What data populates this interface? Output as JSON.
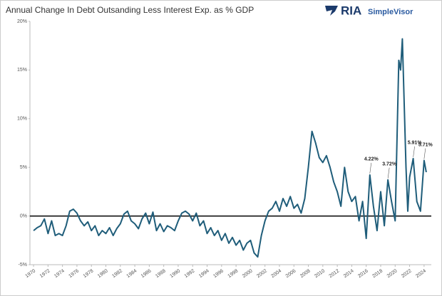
{
  "branding": {
    "name": "RIA",
    "product": "SimpleVisor"
  },
  "chart_data": {
    "type": "line",
    "title": "Annual Change In Debt Outsanding Less Interest Exp. as % GDP",
    "x": [
      1970,
      1970.5,
      1971,
      1971.5,
      1972,
      1972.5,
      1973,
      1973.5,
      1974,
      1974.5,
      1975,
      1975.5,
      1976,
      1976.5,
      1977,
      1977.5,
      1978,
      1978.5,
      1979,
      1979.5,
      1980,
      1980.5,
      1981,
      1981.5,
      1982,
      1982.5,
      1983,
      1983.5,
      1984,
      1984.5,
      1985,
      1985.5,
      1986,
      1986.5,
      1987,
      1987.5,
      1988,
      1988.5,
      1989,
      1989.5,
      1990,
      1990.5,
      1991,
      1991.5,
      1992,
      1992.5,
      1993,
      1993.5,
      1994,
      1994.5,
      1995,
      1995.5,
      1996,
      1996.5,
      1997,
      1997.5,
      1998,
      1998.5,
      1999,
      1999.5,
      2000,
      2000.5,
      2001,
      2001.5,
      2002,
      2002.5,
      2003,
      2003.5,
      2004,
      2004.5,
      2005,
      2005.5,
      2006,
      2006.5,
      2007,
      2007.5,
      2008,
      2008.5,
      2009,
      2009.5,
      2010,
      2010.5,
      2011,
      2011.5,
      2012,
      2012.5,
      2013,
      2013.5,
      2014,
      2014.5,
      2015,
      2015.5,
      2016,
      2016.5,
      2017,
      2017.5,
      2018,
      2018.5,
      2019,
      2019.5,
      2020,
      2020.5,
      2020.75,
      2021,
      2021.5,
      2021.75,
      2022,
      2022.5,
      2023,
      2023.5,
      2024,
      2024.3
    ],
    "series": [
      {
        "color": "#1f5d7a",
        "values": [
          -1.5,
          -1.2,
          -1.0,
          -0.3,
          -1.8,
          -0.5,
          -2.0,
          -1.8,
          -2.0,
          -1.0,
          0.5,
          0.7,
          0.3,
          -0.5,
          -1.0,
          -0.6,
          -1.5,
          -1.0,
          -2.0,
          -1.5,
          -1.8,
          -1.2,
          -2.0,
          -1.3,
          -0.8,
          0.2,
          0.5,
          -0.5,
          -0.8,
          -1.3,
          -0.3,
          0.3,
          -0.8,
          0.4,
          -1.5,
          -0.8,
          -1.6,
          -1.0,
          -1.2,
          -1.5,
          -0.5,
          0.3,
          0.5,
          0.2,
          -0.5,
          0.3,
          -1.0,
          -0.5,
          -1.8,
          -1.2,
          -2.0,
          -1.5,
          -2.5,
          -1.8,
          -2.8,
          -2.2,
          -3.0,
          -2.5,
          -3.5,
          -2.8,
          -2.5,
          -3.8,
          -4.2,
          -2.0,
          -0.5,
          0.5,
          0.8,
          1.5,
          0.5,
          1.8,
          1.0,
          2.0,
          0.8,
          1.2,
          0.3,
          1.8,
          5.0,
          8.7,
          7.5,
          6.0,
          5.5,
          6.2,
          5.0,
          3.5,
          2.5,
          1.0,
          5.0,
          2.5,
          1.5,
          2.0,
          -0.5,
          1.5,
          -2.3,
          4.22,
          1.0,
          -1.5,
          2.5,
          -1.0,
          3.72,
          1.5,
          -0.5,
          16.0,
          15.0,
          18.2,
          5.0,
          0.5,
          4.0,
          5.91,
          1.5,
          0.5,
          5.71,
          4.5
        ],
        "value_labels": [
          null,
          null,
          null,
          null,
          null,
          null,
          null,
          null,
          null,
          null,
          null,
          null,
          null,
          null,
          null,
          null,
          null,
          null,
          null,
          null,
          null,
          null,
          null,
          null,
          null,
          null,
          null,
          null,
          null,
          null,
          null,
          null,
          null,
          null,
          null,
          null,
          null,
          null,
          null,
          null,
          null,
          null,
          null,
          null,
          null,
          null,
          null,
          null,
          null,
          null,
          null,
          null,
          null,
          null,
          null,
          null,
          null,
          null,
          null,
          null,
          null,
          null,
          null,
          null,
          null,
          null,
          null,
          null,
          null,
          null,
          null,
          null,
          null,
          null,
          null,
          null,
          null,
          null,
          null,
          null,
          null,
          null,
          null,
          null,
          null,
          null,
          null,
          null,
          null,
          null,
          null,
          null,
          null,
          "4.22%",
          null,
          null,
          null,
          null,
          "3.72%",
          null,
          null,
          null,
          null,
          null,
          null,
          null,
          null,
          "5.91%",
          null,
          null,
          "5.71%",
          null
        ]
      }
    ],
    "xlim": [
      1969.5,
      2025
    ],
    "xticks": [
      1970,
      1972,
      1974,
      1976,
      1978,
      1980,
      1982,
      1984,
      1986,
      1988,
      1990,
      1992,
      1994,
      1996,
      1998,
      2000,
      2002,
      2004,
      2006,
      2008,
      2010,
      2012,
      2014,
      2016,
      2018,
      2020,
      2022,
      2024
    ],
    "ylim": [
      -5,
      20
    ],
    "yticks": [
      {
        "value": -5,
        "label": "-5%"
      },
      {
        "value": 0,
        "label": "0%"
      },
      {
        "value": 5,
        "label": "5%"
      },
      {
        "value": 10,
        "label": "10%"
      },
      {
        "value": 15,
        "label": "15%"
      },
      {
        "value": 20,
        "label": "20%"
      }
    ],
    "grid": false
  }
}
